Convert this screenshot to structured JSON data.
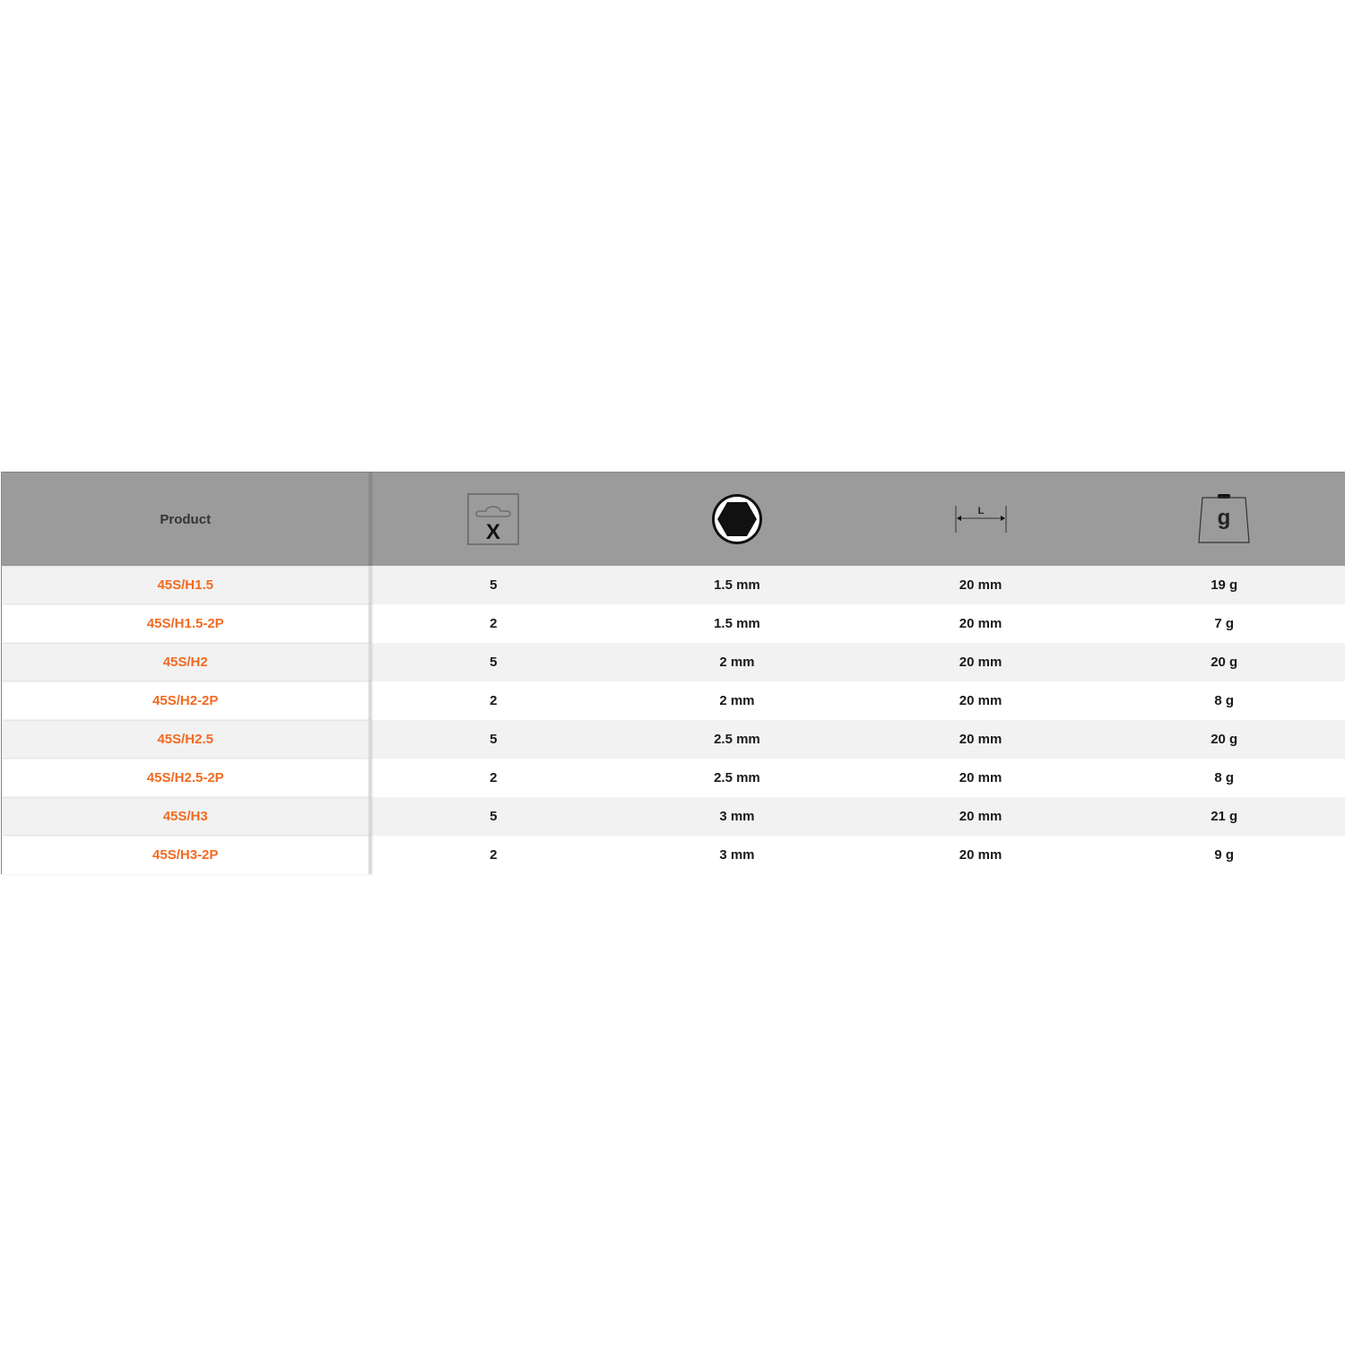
{
  "table": {
    "header": {
      "product_label": "Product",
      "icons": [
        "package-quantity-icon",
        "hex-socket-size-icon",
        "length-icon",
        "weight-icon"
      ],
      "package_icon_letter": "X",
      "length_icon_letter": "L",
      "weight_icon_letter": "g"
    },
    "accent_color": "#f26a21",
    "rows": [
      {
        "product": "45S/H1.5",
        "qty": "5",
        "size": "1.5 mm",
        "length": "20 mm",
        "weight": "19 g"
      },
      {
        "product": "45S/H1.5-2P",
        "qty": "2",
        "size": "1.5 mm",
        "length": "20 mm",
        "weight": "7 g"
      },
      {
        "product": "45S/H2",
        "qty": "5",
        "size": "2 mm",
        "length": "20 mm",
        "weight": "20 g"
      },
      {
        "product": "45S/H2-2P",
        "qty": "2",
        "size": "2 mm",
        "length": "20 mm",
        "weight": "8 g"
      },
      {
        "product": "45S/H2.5",
        "qty": "5",
        "size": "2.5 mm",
        "length": "20 mm",
        "weight": "20 g"
      },
      {
        "product": "45S/H2.5-2P",
        "qty": "2",
        "size": "2.5 mm",
        "length": "20 mm",
        "weight": "8 g"
      },
      {
        "product": "45S/H3",
        "qty": "5",
        "size": "3 mm",
        "length": "20 mm",
        "weight": "21 g"
      },
      {
        "product": "45S/H3-2P",
        "qty": "2",
        "size": "3 mm",
        "length": "20 mm",
        "weight": "9 g"
      }
    ]
  }
}
